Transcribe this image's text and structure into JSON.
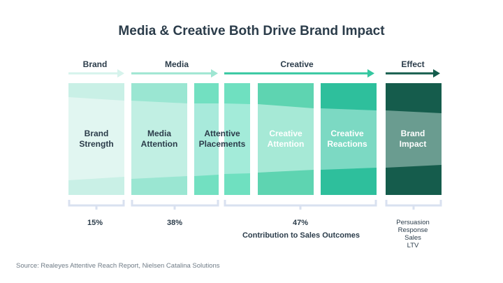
{
  "title": "Media & Creative Both Drive Brand Impact",
  "stages": {
    "brand": "Brand",
    "media": "Media",
    "creative": "Creative",
    "effect": "Effect"
  },
  "columns": [
    {
      "id": "brand-strength",
      "line1": "Brand",
      "line2": "Strength"
    },
    {
      "id": "media-attention",
      "line1": "Media",
      "line2": "Attention"
    },
    {
      "id": "attentive-placements",
      "line1": "Attentive",
      "line2": "Placements"
    },
    {
      "id": "creative-attention",
      "line1": "Creative",
      "line2": "Attention"
    },
    {
      "id": "creative-reactions",
      "line1": "Creative",
      "line2": "Reactions"
    },
    {
      "id": "brand-impact",
      "line1": "Brand",
      "line2": "Impact"
    }
  ],
  "contributions": {
    "brand": "15%",
    "media": "38%",
    "creative": "47%",
    "caption": "Contribution to Sales Outcomes"
  },
  "effects": [
    "Persuasion",
    "Response",
    "Sales",
    "LTV"
  ],
  "source": "Source: Realeyes Attentive Reach Report, Nielsen Catalina Solutions",
  "colors": {
    "title": "#2b3c4a",
    "brand": "#dff6f1",
    "media": "#a7ecdc",
    "creative": "#43d2ad",
    "effect": "#145c4c",
    "bracket": "#d9e1f0"
  }
}
